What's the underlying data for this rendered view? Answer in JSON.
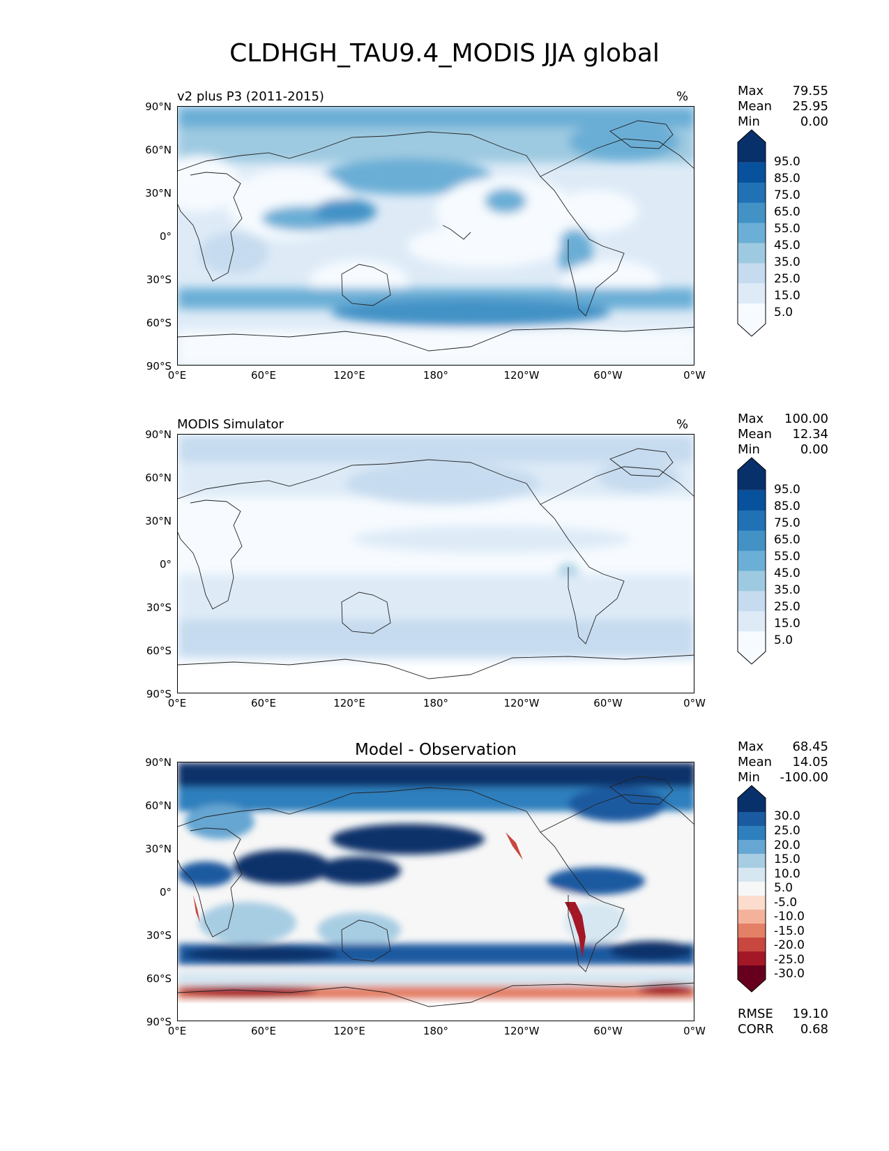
{
  "title": "CLDHGH_TAU9.4_MODIS JJA global",
  "axes": {
    "lat_labels": [
      "90°N",
      "60°N",
      "30°N",
      "0°",
      "30°S",
      "60°S",
      "90°S"
    ],
    "lon_labels": [
      "0°E",
      "60°E",
      "120°E",
      "180°",
      "120°W",
      "60°W",
      "0°W"
    ]
  },
  "panels": [
    {
      "title": "v2 plus P3 (2011-2015)",
      "units": "%",
      "stats": {
        "max_label": "Max",
        "max": "79.55",
        "mean_label": "Mean",
        "mean": "25.95",
        "min_label": "Min",
        "min": "0.00"
      },
      "colorbar_labels": [
        "95.0",
        "85.0",
        "75.0",
        "65.0",
        "55.0",
        "45.0",
        "35.0",
        "25.0",
        "15.0",
        "5.0"
      ],
      "colorbar_colors": [
        "#08306b",
        "#08519c",
        "#2171b5",
        "#4292c6",
        "#6baed6",
        "#9ecae1",
        "#c6dbef",
        "#deebf7",
        "#f7fbff"
      ]
    },
    {
      "title": "MODIS Simulator",
      "units": "%",
      "stats": {
        "max_label": "Max",
        "max": "100.00",
        "mean_label": "Mean",
        "mean": "12.34",
        "min_label": "Min",
        "min": "0.00"
      },
      "colorbar_labels": [
        "95.0",
        "85.0",
        "75.0",
        "65.0",
        "55.0",
        "45.0",
        "35.0",
        "25.0",
        "15.0",
        "5.0"
      ],
      "colorbar_colors": [
        "#08306b",
        "#08519c",
        "#2171b5",
        "#4292c6",
        "#6baed6",
        "#9ecae1",
        "#c6dbef",
        "#deebf7",
        "#f7fbff"
      ]
    },
    {
      "title": "Model - Observation",
      "units": "",
      "stats": {
        "max_label": "Max",
        "max": "68.45",
        "mean_label": "Mean",
        "mean": "14.05",
        "min_label": "Min",
        "min": "-100.00"
      },
      "colorbar_labels": [
        "30.0",
        "25.0",
        "20.0",
        "15.0",
        "10.0",
        "5.0",
        "-5.0",
        "-10.0",
        "-15.0",
        "-20.0",
        "-25.0",
        "-30.0"
      ],
      "colorbar_colors": [
        "#08306b",
        "#1a5aa0",
        "#2e7fbd",
        "#66a6d2",
        "#a7cde3",
        "#d6e7f2",
        "#f7f7f7",
        "#fbdccd",
        "#f4b29a",
        "#e48066",
        "#c8473f",
        "#a31726",
        "#67001f"
      ],
      "rmse_label": "RMSE",
      "rmse": "19.10",
      "corr_label": "CORR",
      "corr": "0.68"
    }
  ]
}
